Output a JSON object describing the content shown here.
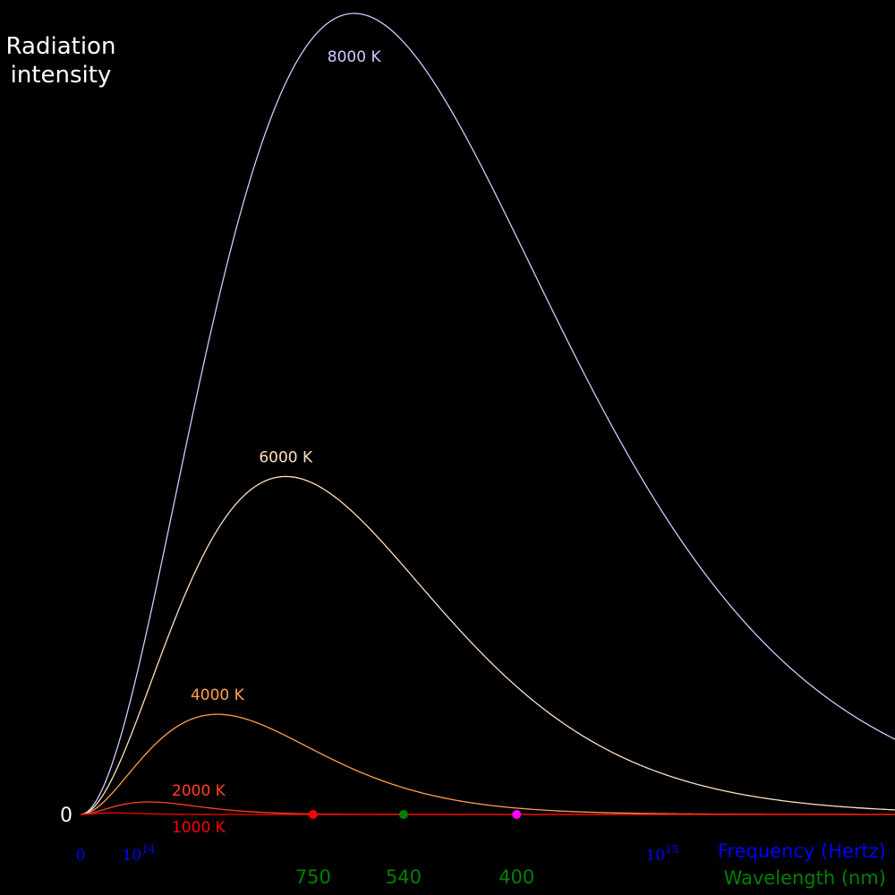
{
  "chart_data": {
    "type": "line",
    "y_label_lines": [
      "Radiation",
      "intensity"
    ],
    "y_zero_label": "0",
    "x_axis": {
      "label": "Frequency (Hertz)",
      "label_color": "#0000ff",
      "ticks": [
        {
          "x": 0,
          "base": "0",
          "exp": ""
        },
        {
          "x": 100000000000000.0,
          "base": "10",
          "exp": "14"
        },
        {
          "x": 1000000000000000.0,
          "base": "10",
          "exp": "15"
        }
      ],
      "range": [
        0,
        1400000000000000.0
      ]
    },
    "wavelength_axis": {
      "label": "Wavelength (nm)",
      "label_color": "#008000",
      "ticks": [
        {
          "nm": 750,
          "label": "750",
          "marker_color": "#ff0000"
        },
        {
          "nm": 540,
          "label": "540",
          "marker_color": "#008000"
        },
        {
          "nm": 400,
          "label": "400",
          "marker_color": "#ff00ff"
        }
      ]
    },
    "series": [
      {
        "name": "8000 K",
        "temperature": 8000,
        "color": "#ccccff"
      },
      {
        "name": "6000 K",
        "temperature": 6000,
        "color": "#ffe0c0"
      },
      {
        "name": "4000 K",
        "temperature": 4000,
        "color": "#ffa050"
      },
      {
        "name": "2000 K",
        "temperature": 2000,
        "color": "#ff4020"
      },
      {
        "name": "1000 K",
        "temperature": 1000,
        "color": "#ff0000"
      }
    ],
    "grid": false,
    "legend": "inline labels"
  }
}
